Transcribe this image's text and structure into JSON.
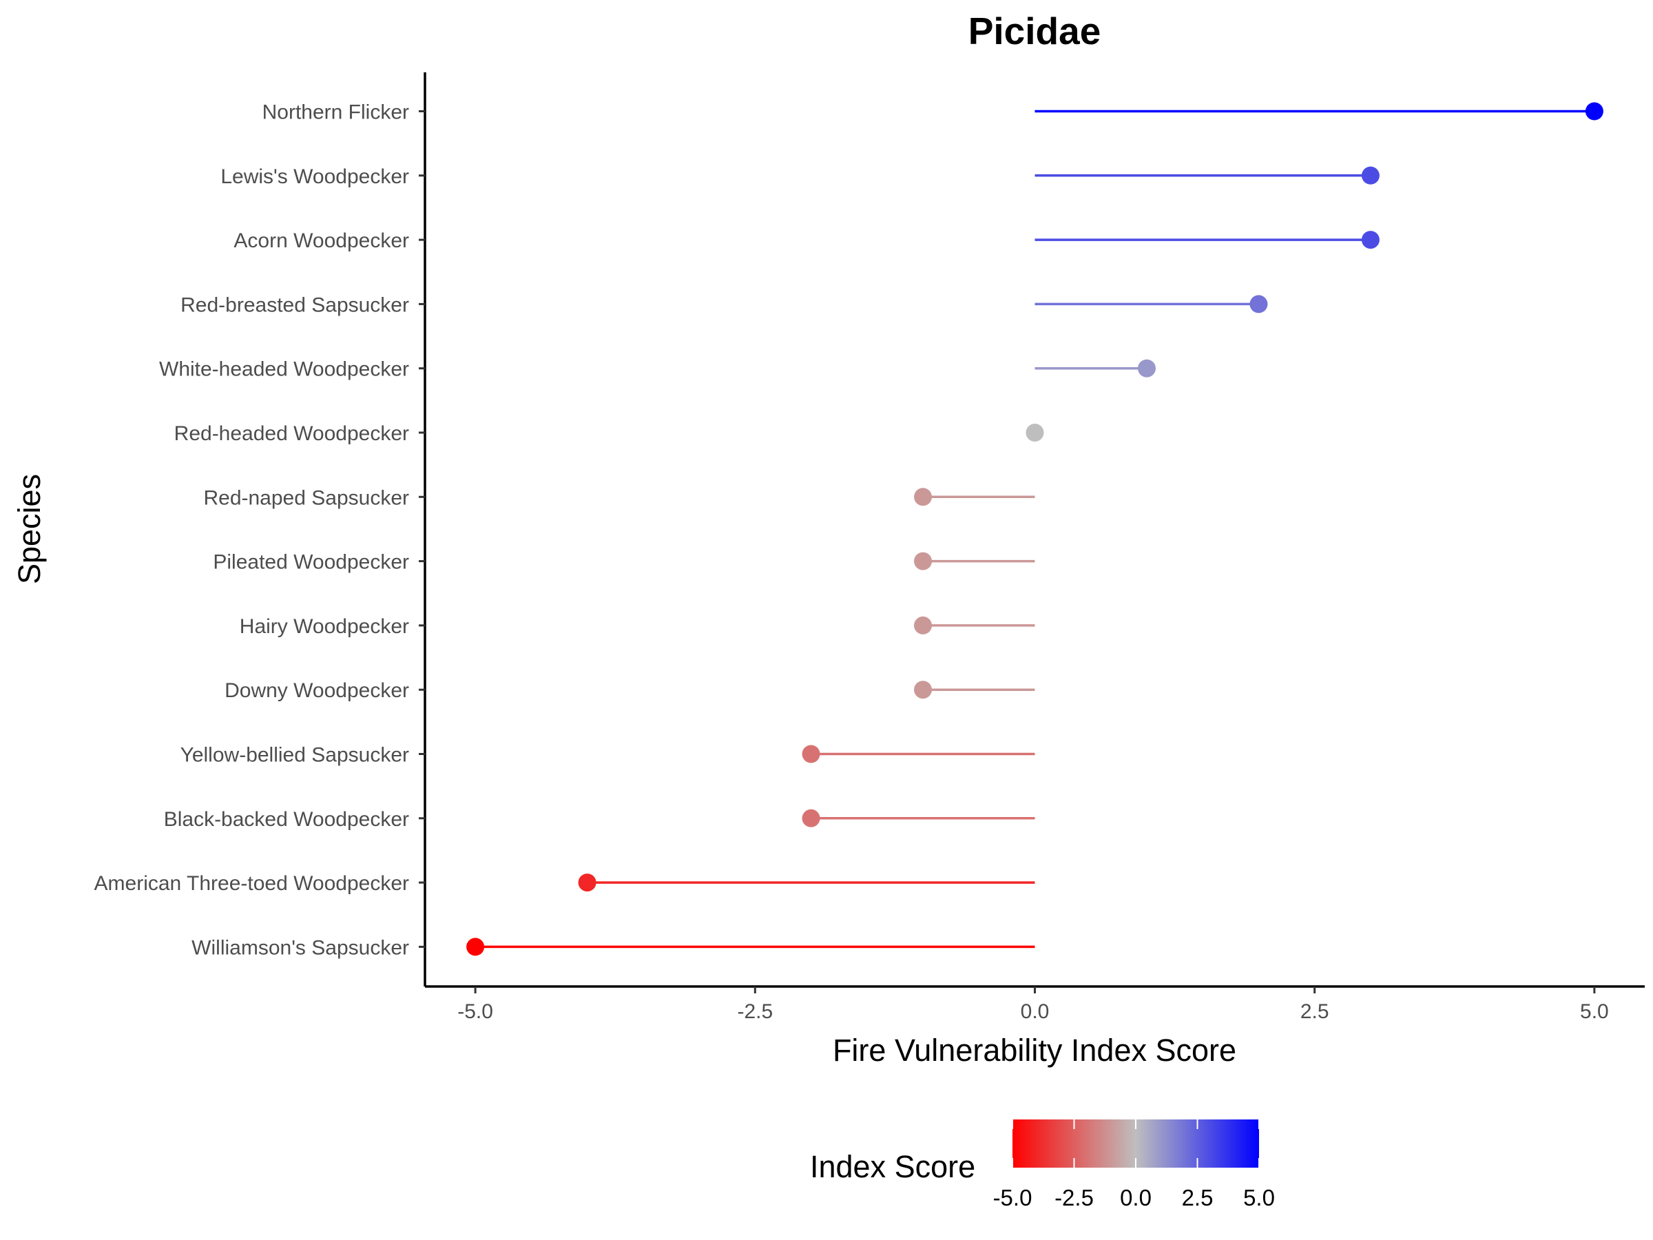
{
  "chart_data": {
    "type": "lollipop",
    "title": "Picidae",
    "xlabel": "Fire Vulnerability Index Score",
    "ylabel": "Species",
    "xlim": [
      -5.45,
      5.45
    ],
    "x_ticks": [
      -5.0,
      -2.5,
      0.0,
      2.5,
      5.0
    ],
    "x_tick_labels": [
      "-5.0",
      "-2.5",
      "0.0",
      "2.5",
      "5.0"
    ],
    "grid": false,
    "categories": [
      "Northern Flicker",
      "Lewis's Woodpecker",
      "Acorn Woodpecker",
      "Red-breasted Sapsucker",
      "White-headed Woodpecker",
      "Red-headed Woodpecker",
      "Red-naped Sapsucker",
      "Pileated Woodpecker",
      "Hairy Woodpecker",
      "Downy Woodpecker",
      "Yellow-bellied Sapsucker",
      "Black-backed Woodpecker",
      "American Three-toed Woodpecker",
      "Williamson's Sapsucker"
    ],
    "values": [
      5,
      3,
      3,
      2,
      1,
      0,
      -1,
      -1,
      -1,
      -1,
      -2,
      -2,
      -4,
      -5
    ],
    "legend": {
      "title": "Index Score",
      "placement": "bottom",
      "range": [
        -5,
        5
      ],
      "ticks": [
        -5.0,
        -2.5,
        0.0,
        2.5,
        5.0
      ],
      "tick_labels": [
        "-5.0",
        "-2.5",
        "0.0",
        "2.5",
        "5.0"
      ]
    },
    "colors": {
      "low": "#ff0000",
      "mid": "#bebebe",
      "high": "#0000ff"
    }
  }
}
